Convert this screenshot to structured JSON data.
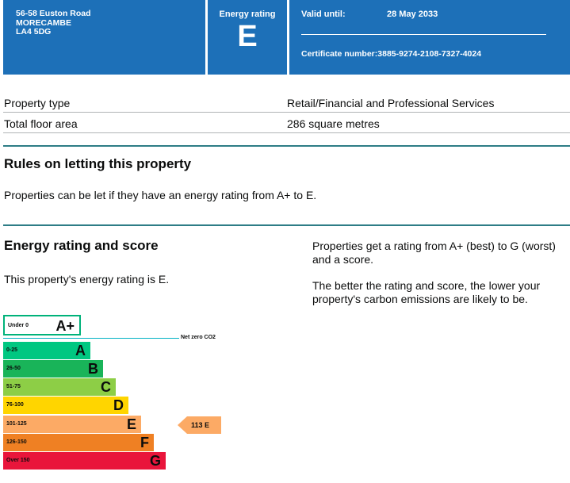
{
  "header": {
    "address_lines": [
      "56-58 Euston Road",
      "MORECAMBE",
      "LA4 5DG"
    ],
    "rating_label": "Energy rating",
    "rating": "E",
    "valid_label": "Valid until:",
    "valid_date": "28 May 2033",
    "certificate_label": "Certificate number:",
    "certificate_number": "3885-9274-2108-7327-4024"
  },
  "facts": [
    {
      "key": "Property type",
      "value": "Retail/Financial and Professional Services"
    },
    {
      "key": "Total floor area",
      "value": "286 square metres"
    }
  ],
  "rules": {
    "heading": "Rules on letting this property",
    "text": "Properties can be let if they have an energy rating from A+ to E."
  },
  "energy": {
    "heading": "Energy rating and score",
    "text": "This property's energy rating is E.",
    "side_text_1": "Properties get a rating from A+ (best) to G (worst) and a score.",
    "side_text_2": "The better the rating and score, the lower your property's carbon emissions are likely to be."
  },
  "scale": {
    "aplus": {
      "range": "Under 0",
      "letter": "A+",
      "color": "#00b27a"
    },
    "net_zero_label": "Net zero CO2",
    "net_zero_color": "#00b2c4",
    "bands": [
      {
        "range": "0-25",
        "letter": "A",
        "color": "#00c781"
      },
      {
        "range": "26-50",
        "letter": "B",
        "color": "#19b459"
      },
      {
        "range": "51-75",
        "letter": "C",
        "color": "#8dce46"
      },
      {
        "range": "76-100",
        "letter": "D",
        "color": "#ffd500"
      },
      {
        "range": "101-125",
        "letter": "E",
        "color": "#fcaa65"
      },
      {
        "range": "126-150",
        "letter": "F",
        "color": "#ef8023"
      },
      {
        "range": "Over 150",
        "letter": "G",
        "color": "#e9153b"
      }
    ],
    "current": {
      "score": "113",
      "letter": "E",
      "color": "#fcaa65"
    }
  }
}
